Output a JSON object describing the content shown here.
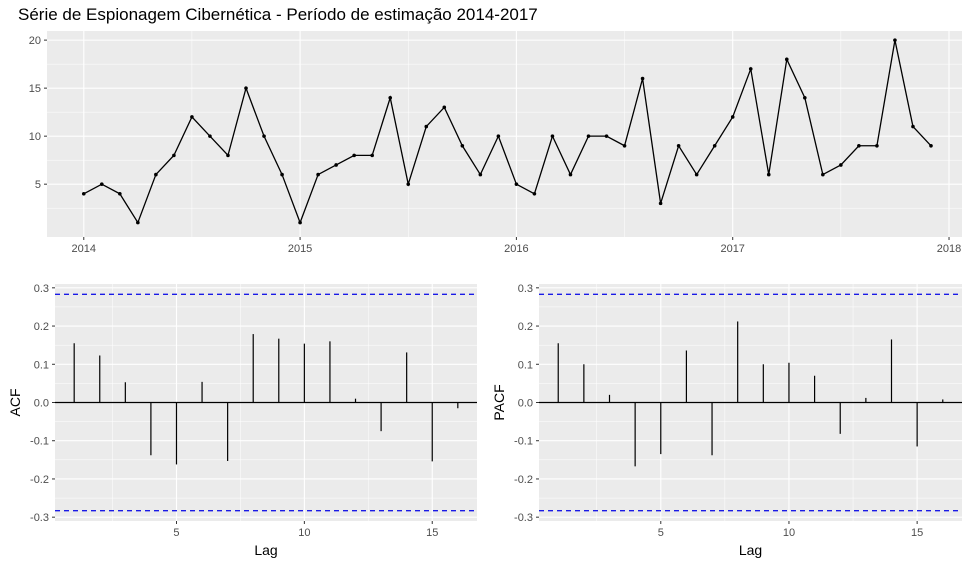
{
  "chart_data": [
    {
      "type": "line",
      "title": "Série de Espionagem Cibernética - Período de estimação 2014-2017",
      "xlabel": "",
      "ylabel": "",
      "start": [
        2014,
        1
      ],
      "frequency": 12,
      "values": [
        4,
        5,
        4,
        1,
        6,
        8,
        12,
        10,
        8,
        15,
        10,
        6,
        1,
        6,
        7,
        8,
        8,
        14,
        5,
        11,
        13,
        9,
        6,
        10,
        5,
        4,
        10,
        6,
        10,
        10,
        9,
        16,
        3,
        9,
        6,
        9,
        12,
        17,
        6,
        18,
        14,
        6,
        7,
        9,
        9,
        20,
        11,
        9
      ],
      "xlim": [
        2013.83,
        2018.06
      ],
      "ylim": [
        -0.5,
        20.95
      ],
      "x_ticks": [
        2014,
        2015,
        2016,
        2017,
        2018
      ],
      "x_tick_labels": [
        "2014",
        "2015",
        "2016",
        "2017",
        "2018"
      ],
      "y_ticks": [
        5,
        10,
        15,
        20
      ],
      "y_tick_labels": [
        "5",
        "10",
        "15",
        "20"
      ],
      "line_color": "#000000",
      "grid": true
    },
    {
      "type": "bar",
      "xlabel": "Lag",
      "ylabel": "ACF",
      "lags": [
        1,
        2,
        3,
        4,
        5,
        6,
        7,
        8,
        9,
        10,
        11,
        12,
        13,
        14,
        15,
        16
      ],
      "values": [
        0.155,
        0.123,
        0.053,
        -0.138,
        -0.162,
        0.054,
        -0.153,
        0.179,
        0.167,
        0.154,
        0.16,
        0.01,
        -0.075,
        0.131,
        -0.154,
        -0.015
      ],
      "ci": 0.283,
      "ci_color": "#1a1ae6",
      "xlim": [
        0.25,
        16.75
      ],
      "ylim": [
        -0.31,
        0.31
      ],
      "x_ticks": [
        5,
        10,
        15
      ],
      "x_tick_labels": [
        "5",
        "10",
        "15"
      ],
      "y_ticks": [
        -0.3,
        -0.2,
        -0.1,
        0.0,
        0.1,
        0.2,
        0.3
      ],
      "y_tick_labels": [
        "-0.3",
        "-0.2",
        "-0.1",
        "0.0",
        "0.1",
        "0.2",
        "0.3"
      ],
      "grid": true
    },
    {
      "type": "bar",
      "xlabel": "Lag",
      "ylabel": "PACF",
      "lags": [
        1,
        2,
        3,
        4,
        5,
        6,
        7,
        8,
        9,
        10,
        11,
        12,
        13,
        14,
        15,
        16
      ],
      "values": [
        0.155,
        0.1,
        0.02,
        -0.167,
        -0.135,
        0.136,
        -0.138,
        0.212,
        0.1,
        0.104,
        0.07,
        -0.082,
        0.012,
        0.165,
        -0.115,
        0.008
      ],
      "ci": 0.283,
      "ci_color": "#1a1ae6",
      "xlim": [
        0.25,
        16.75
      ],
      "ylim": [
        -0.31,
        0.31
      ],
      "x_ticks": [
        5,
        10,
        15
      ],
      "x_tick_labels": [
        "5",
        "10",
        "15"
      ],
      "y_ticks": [
        -0.3,
        -0.2,
        -0.1,
        0.0,
        0.1,
        0.2,
        0.3
      ],
      "y_tick_labels": [
        "-0.3",
        "-0.2",
        "-0.1",
        "0.0",
        "0.1",
        "0.2",
        "0.3"
      ],
      "grid": true
    }
  ]
}
